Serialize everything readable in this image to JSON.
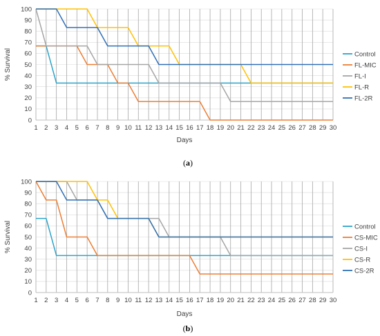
{
  "colors": {
    "grid_vertical": "#a6a6a6",
    "grid_horizontal": "#d9d9d9",
    "axis": "#bfbfbf",
    "Control": "#2aa3c8",
    "MIC": "#ed7d31",
    "I": "#a5a5a5",
    "R": "#ffc000",
    "2R": "#2e6fb7"
  },
  "chart_data": [
    {
      "type": "line",
      "panel_label": "a",
      "xlabel": "Days",
      "ylabel": "% Survival",
      "xlim": [
        1,
        30
      ],
      "ylim": [
        0,
        100
      ],
      "y_ticks": [
        0,
        10,
        20,
        30,
        40,
        50,
        60,
        70,
        80,
        90,
        100
      ],
      "x_ticks": [
        1,
        2,
        3,
        4,
        5,
        6,
        7,
        8,
        9,
        10,
        11,
        12,
        13,
        14,
        15,
        16,
        17,
        18,
        19,
        20,
        21,
        22,
        23,
        24,
        25,
        26,
        27,
        28,
        29,
        30
      ],
      "grid": "vertical",
      "legend_position": "right",
      "series": [
        {
          "name": "Control",
          "color_key": "Control",
          "points": [
            [
              1,
              66.7
            ],
            [
              2,
              66.7
            ],
            [
              3,
              33.3
            ],
            [
              20,
              33.3
            ],
            [
              21,
              33.3
            ],
            [
              22,
              33.3
            ],
            [
              30,
              33.3
            ]
          ]
        },
        {
          "name": "FL-MIC",
          "color_key": "MIC",
          "points": [
            [
              1,
              66.7
            ],
            [
              5,
              66.7
            ],
            [
              6,
              50
            ],
            [
              8,
              50
            ],
            [
              9,
              33.3
            ],
            [
              10,
              33.3
            ],
            [
              11,
              16.7
            ],
            [
              17,
              16.7
            ],
            [
              18,
              0
            ],
            [
              30,
              0
            ]
          ]
        },
        {
          "name": "FL-I",
          "color_key": "I",
          "points": [
            [
              1,
              100
            ],
            [
              2,
              66.7
            ],
            [
              6,
              66.7
            ],
            [
              7,
              50
            ],
            [
              12,
              50
            ],
            [
              13,
              33.3
            ],
            [
              19,
              33.3
            ],
            [
              20,
              16.7
            ],
            [
              30,
              16.7
            ]
          ]
        },
        {
          "name": "FL-R",
          "color_key": "R",
          "points": [
            [
              1,
              100
            ],
            [
              6,
              100
            ],
            [
              7,
              83.3
            ],
            [
              10,
              83.3
            ],
            [
              11,
              66.7
            ],
            [
              14,
              66.7
            ],
            [
              15,
              50
            ],
            [
              21,
              50
            ],
            [
              22,
              33.3
            ],
            [
              30,
              33.3
            ]
          ]
        },
        {
          "name": "FL-2R",
          "color_key": "2R",
          "points": [
            [
              1,
              100
            ],
            [
              3,
              100
            ],
            [
              4,
              83.3
            ],
            [
              7,
              83.3
            ],
            [
              8,
              66.7
            ],
            [
              12,
              66.7
            ],
            [
              13,
              50
            ],
            [
              30,
              50
            ]
          ]
        }
      ]
    },
    {
      "type": "line",
      "panel_label": "b",
      "xlabel": "Days",
      "ylabel": "% Survival",
      "xlim": [
        1,
        30
      ],
      "ylim": [
        0,
        100
      ],
      "y_ticks": [
        0,
        10,
        20,
        30,
        40,
        50,
        60,
        70,
        80,
        90,
        100
      ],
      "x_ticks": [
        1,
        2,
        3,
        4,
        5,
        6,
        7,
        8,
        9,
        10,
        11,
        12,
        13,
        14,
        15,
        16,
        17,
        18,
        19,
        20,
        21,
        22,
        23,
        24,
        25,
        26,
        27,
        28,
        29,
        30
      ],
      "grid": "vertical",
      "legend_position": "right",
      "series": [
        {
          "name": "Control",
          "color_key": "Control",
          "points": [
            [
              1,
              66.7
            ],
            [
              2,
              66.7
            ],
            [
              3,
              33.3
            ],
            [
              30,
              33.3
            ]
          ]
        },
        {
          "name": "CS-MIC",
          "color_key": "MIC",
          "points": [
            [
              1,
              100
            ],
            [
              2,
              83.3
            ],
            [
              3,
              83.3
            ],
            [
              4,
              50
            ],
            [
              6,
              50
            ],
            [
              7,
              33.3
            ],
            [
              16,
              33.3
            ],
            [
              17,
              16.7
            ],
            [
              30,
              16.7
            ]
          ]
        },
        {
          "name": "CS-I",
          "color_key": "I",
          "points": [
            [
              1,
              100
            ],
            [
              4,
              100
            ],
            [
              5,
              83.3
            ],
            [
              6,
              83.3
            ],
            [
              7,
              83.3
            ],
            [
              8,
              66.7
            ],
            [
              13,
              66.7
            ],
            [
              14,
              50
            ],
            [
              19,
              50
            ],
            [
              20,
              33.3
            ],
            [
              30,
              33.3
            ]
          ]
        },
        {
          "name": "CS-R",
          "color_key": "R",
          "points": [
            [
              1,
              100
            ],
            [
              6,
              100
            ],
            [
              7,
              83.3
            ],
            [
              8,
              83.3
            ],
            [
              9,
              66.7
            ],
            [
              12,
              66.7
            ],
            [
              13,
              50
            ],
            [
              30,
              50
            ]
          ]
        },
        {
          "name": "CS-2R",
          "color_key": "2R",
          "points": [
            [
              1,
              100
            ],
            [
              3,
              100
            ],
            [
              4,
              83.3
            ],
            [
              6,
              83.3
            ],
            [
              7,
              83.3
            ],
            [
              8,
              66.7
            ],
            [
              12,
              66.7
            ],
            [
              13,
              50
            ],
            [
              30,
              50
            ]
          ]
        }
      ]
    }
  ]
}
